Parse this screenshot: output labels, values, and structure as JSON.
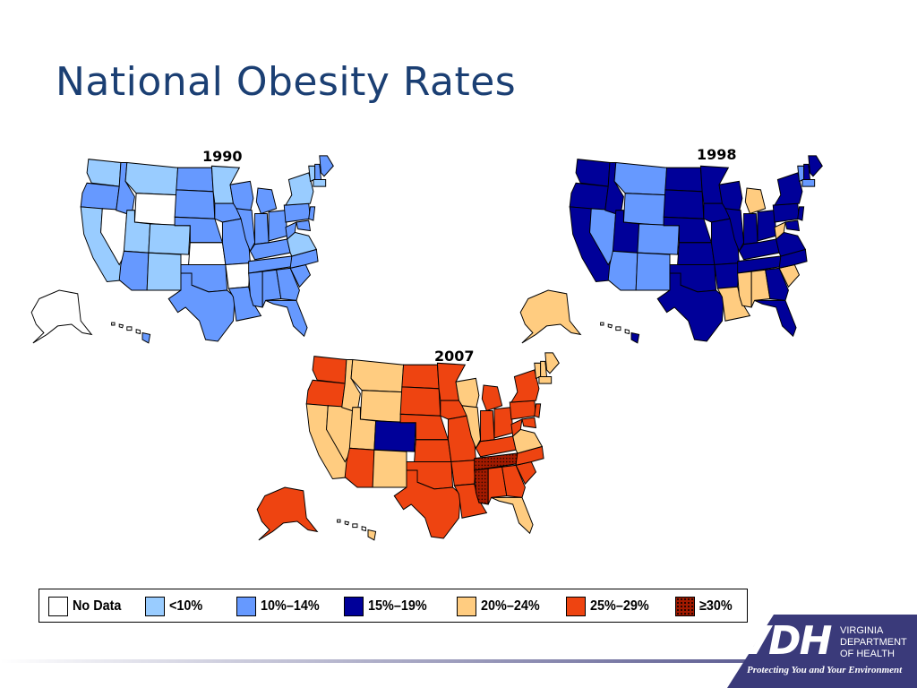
{
  "slide": {
    "title": "National Obesity Rates"
  },
  "colors": {
    "no_data": "#ffffff",
    "lt10": "#99ccff",
    "r10_14": "#6699ff",
    "r15_19": "#000099",
    "r20_24": "#ffcc80",
    "r25_29": "#ee4411",
    "ge30": "#a31a00",
    "title": "#1b3f73",
    "footer": "#3a3a7a"
  },
  "maps": [
    {
      "year": "1990",
      "default_class": "r10_14",
      "states": {
        "WA": "lt10",
        "OR": "r10_14",
        "CA": "lt10",
        "NV": "no_data",
        "ID": "r10_14",
        "MT": "lt10",
        "WY": "no_data",
        "UT": "lt10",
        "CO": "lt10",
        "AZ": "r10_14",
        "NM": "lt10",
        "ND": "r10_14",
        "SD": "r10_14",
        "NE": "r10_14",
        "KS": "no_data",
        "OK": "r10_14",
        "TX": "r10_14",
        "MN": "lt10",
        "IA": "r10_14",
        "MO": "r10_14",
        "AR": "no_data",
        "LA": "r10_14",
        "WI": "r10_14",
        "IL": "r10_14",
        "MI": "r10_14",
        "IN": "r10_14",
        "OH": "r10_14",
        "KY": "r10_14",
        "TN": "r10_14",
        "MS": "r10_14",
        "AL": "r10_14",
        "GA": "r10_14",
        "FL": "r10_14",
        "SC": "r10_14",
        "NC": "r10_14",
        "VA": "lt10",
        "WV": "r10_14",
        "PA": "r10_14",
        "NY": "lt10",
        "VT": "lt10",
        "NH": "r10_14",
        "ME": "r10_14",
        "MA": "lt10",
        "NJ": "r10_14",
        "MD": "r10_14",
        "AK": "no_data",
        "HI": "r10_14"
      }
    },
    {
      "year": "1998",
      "default_class": "r15_19",
      "states": {
        "WA": "r15_19",
        "OR": "r15_19",
        "CA": "r15_19",
        "NV": "r10_14",
        "ID": "r15_19",
        "MT": "r10_14",
        "WY": "r10_14",
        "UT": "r15_19",
        "CO": "r10_14",
        "AZ": "r10_14",
        "NM": "r10_14",
        "ND": "r15_19",
        "SD": "r15_19",
        "NE": "r15_19",
        "KS": "r15_19",
        "OK": "r15_19",
        "TX": "r15_19",
        "MN": "r15_19",
        "IA": "r15_19",
        "MO": "r15_19",
        "AR": "r15_19",
        "LA": "r20_24",
        "WI": "r15_19",
        "IL": "r15_19",
        "MI": "r20_24",
        "IN": "r15_19",
        "OH": "r15_19",
        "KY": "r15_19",
        "TN": "r15_19",
        "MS": "r20_24",
        "AL": "r20_24",
        "GA": "r15_19",
        "FL": "r15_19",
        "SC": "r20_24",
        "NC": "r15_19",
        "VA": "r15_19",
        "WV": "r20_24",
        "PA": "r15_19",
        "NY": "r15_19",
        "VT": "r10_14",
        "NH": "r15_19",
        "ME": "r15_19",
        "MA": "r10_14",
        "NJ": "r15_19",
        "MD": "r15_19",
        "AK": "r20_24",
        "HI": "r15_19"
      }
    },
    {
      "year": "2007",
      "default_class": "r25_29",
      "states": {
        "WA": "r25_29",
        "OR": "r25_29",
        "CA": "r20_24",
        "NV": "r20_24",
        "ID": "r20_24",
        "MT": "r20_24",
        "WY": "r20_24",
        "UT": "r20_24",
        "CO": "r15_19",
        "AZ": "r25_29",
        "NM": "r20_24",
        "ND": "r25_29",
        "SD": "r25_29",
        "NE": "r25_29",
        "KS": "r25_29",
        "OK": "r25_29",
        "TX": "r25_29",
        "MN": "r25_29",
        "IA": "r25_29",
        "MO": "r25_29",
        "AR": "r25_29",
        "LA": "r25_29",
        "WI": "r20_24",
        "IL": "r20_24",
        "MI": "r25_29",
        "IN": "r25_29",
        "OH": "r25_29",
        "KY": "r25_29",
        "TN": "ge30",
        "MS": "ge30",
        "AL": "r25_29",
        "GA": "r25_29",
        "FL": "r20_24",
        "SC": "r25_29",
        "NC": "r25_29",
        "VA": "r20_24",
        "WV": "r25_29",
        "PA": "r25_29",
        "NY": "r25_29",
        "VT": "r20_24",
        "NH": "r20_24",
        "ME": "r20_24",
        "MA": "r20_24",
        "NJ": "r25_29",
        "MD": "r25_29",
        "AK": "r25_29",
        "HI": "r20_24"
      }
    }
  ],
  "legend": [
    {
      "label": "No Data",
      "class": "no_data"
    },
    {
      "label": "<10%",
      "class": "lt10"
    },
    {
      "label": "10%–14%",
      "class": "r10_14"
    },
    {
      "label": "15%–19%",
      "class": "r15_19"
    },
    {
      "label": "20%–24%",
      "class": "r20_24"
    },
    {
      "label": "25%–29%",
      "class": "r25_29"
    },
    {
      "label": "≥30%",
      "class": "ge30"
    }
  ],
  "logo": {
    "mark": "VDH",
    "org_line1": "VIRGINIA",
    "org_line2": "DEPARTMENT",
    "org_line3": "OF HEALTH",
    "tagline": "Protecting You and Your Environment"
  }
}
